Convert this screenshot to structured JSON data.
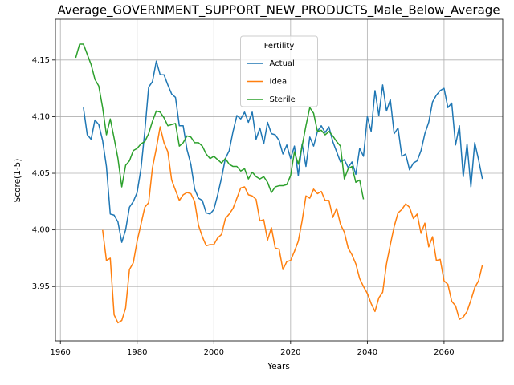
{
  "chart_data": {
    "type": "line",
    "title": "Average_GOVERNMENT_SUPPORT_NEW_PRODUCTS_Male_Below_Average",
    "xlabel": "Years",
    "ylabel": "Score(1-5)",
    "legend_title": "Fertility",
    "legend": "upper center",
    "grid": true,
    "xlim": [
      1958.7,
      2075.3
    ],
    "ylim": [
      3.902,
      4.186
    ],
    "xticks": [
      1960,
      1980,
      2000,
      2020,
      2040,
      2060
    ],
    "yticks": [
      3.95,
      {
        "value": 4.0,
        "label": "4.00"
      },
      4.05,
      {
        "value": 4.1,
        "label": "4.10"
      },
      4.15
    ],
    "x": [
      1964,
      1965,
      1966,
      1967,
      1968,
      1969,
      1970,
      1971,
      1972,
      1973,
      1974,
      1975,
      1976,
      1977,
      1978,
      1979,
      1980,
      1981,
      1982,
      1983,
      1984,
      1985,
      1986,
      1987,
      1988,
      1989,
      1990,
      1991,
      1992,
      1993,
      1994,
      1995,
      1996,
      1997,
      1998,
      1999,
      2000,
      2001,
      2002,
      2003,
      2004,
      2005,
      2006,
      2007,
      2008,
      2009,
      2010,
      2011,
      2012,
      2013,
      2014,
      2015,
      2016,
      2017,
      2018,
      2019,
      2020,
      2021,
      2022,
      2023,
      2024,
      2025,
      2026,
      2027,
      2028,
      2029,
      2030,
      2031,
      2032,
      2033,
      2034,
      2035,
      2036,
      2037,
      2038,
      2039,
      2040,
      2041,
      2042,
      2043,
      2044,
      2045,
      2046,
      2047,
      2048,
      2049,
      2050,
      2051,
      2052,
      2053,
      2054,
      2055,
      2056,
      2057,
      2058,
      2059,
      2060,
      2061,
      2062,
      2063,
      2064,
      2065,
      2066,
      2067,
      2068,
      2069,
      2070
    ],
    "series": [
      {
        "name": "Actual",
        "color": "#1f77b4",
        "values": [
          null,
          null,
          4.108,
          4.084,
          4.08,
          4.097,
          4.093,
          4.079,
          4.056,
          4.014,
          4.013,
          4.007,
          3.989,
          4.0,
          4.02,
          4.025,
          4.033,
          4.054,
          4.087,
          4.126,
          4.131,
          4.149,
          4.137,
          4.137,
          4.128,
          4.12,
          4.117,
          4.092,
          4.092,
          4.071,
          4.058,
          4.036,
          4.028,
          4.026,
          4.015,
          4.014,
          4.018,
          4.031,
          4.046,
          4.063,
          4.07,
          4.087,
          4.101,
          4.098,
          4.104,
          4.095,
          4.104,
          4.08,
          4.09,
          4.076,
          4.095,
          4.085,
          4.084,
          4.079,
          4.067,
          4.075,
          4.063,
          4.074,
          4.048,
          4.076,
          4.056,
          4.082,
          4.074,
          4.087,
          4.092,
          4.086,
          4.091,
          4.078,
          4.069,
          4.06,
          4.062,
          4.055,
          4.06,
          4.049,
          4.072,
          4.065,
          4.1,
          4.087,
          4.123,
          4.101,
          4.128,
          4.105,
          4.115,
          4.085,
          4.09,
          4.065,
          4.067,
          4.053,
          4.059,
          4.061,
          4.07,
          4.085,
          4.095,
          4.113,
          4.119,
          4.123,
          4.125,
          4.108,
          4.112,
          4.075,
          4.092,
          4.047,
          4.076,
          4.038,
          4.077,
          4.062,
          4.045
        ]
      },
      {
        "name": "Ideal",
        "color": "#ff7f0e",
        "values": [
          null,
          null,
          null,
          null,
          null,
          null,
          null,
          4.0,
          3.973,
          3.975,
          3.925,
          3.918,
          3.92,
          3.931,
          3.965,
          3.971,
          3.99,
          4.005,
          4.02,
          4.024,
          4.055,
          4.072,
          4.091,
          4.077,
          4.069,
          4.044,
          4.035,
          4.026,
          4.031,
          4.033,
          4.032,
          4.025,
          4.004,
          3.994,
          3.986,
          3.987,
          3.987,
          3.993,
          3.996,
          4.01,
          4.014,
          4.019,
          4.028,
          4.037,
          4.038,
          4.031,
          4.03,
          4.027,
          4.008,
          4.009,
          3.991,
          4.002,
          3.984,
          3.983,
          3.965,
          3.972,
          3.973,
          3.981,
          3.99,
          4.008,
          4.03,
          4.028,
          4.036,
          4.032,
          4.034,
          4.026,
          4.026,
          4.011,
          4.019,
          4.005,
          3.998,
          3.984,
          3.978,
          3.97,
          3.957,
          3.95,
          3.944,
          3.935,
          3.928,
          3.94,
          3.945,
          3.97,
          3.987,
          4.003,
          4.015,
          4.018,
          4.023,
          4.02,
          4.01,
          4.014,
          3.997,
          4.006,
          3.985,
          3.994,
          3.973,
          3.974,
          3.955,
          3.952,
          3.937,
          3.933,
          3.921,
          3.923,
          3.928,
          3.938,
          3.949,
          3.955,
          3.969
        ]
      },
      {
        "name": "Sterile",
        "color": "#2ca02c",
        "values": [
          4.152,
          4.164,
          4.164,
          4.155,
          4.146,
          4.133,
          4.127,
          4.108,
          4.084,
          4.098,
          4.081,
          4.063,
          4.038,
          4.057,
          4.061,
          4.07,
          4.072,
          4.076,
          4.078,
          4.085,
          4.096,
          4.105,
          4.104,
          4.099,
          4.092,
          4.093,
          4.094,
          4.074,
          4.077,
          4.083,
          4.082,
          4.077,
          4.077,
          4.074,
          4.067,
          4.063,
          4.065,
          4.062,
          4.059,
          4.063,
          4.058,
          4.056,
          4.056,
          4.052,
          4.054,
          4.045,
          4.051,
          4.047,
          4.045,
          4.047,
          4.042,
          4.033,
          4.038,
          4.039,
          4.039,
          4.04,
          4.048,
          4.069,
          4.058,
          4.074,
          4.092,
          4.108,
          4.103,
          4.087,
          4.088,
          4.084,
          4.087,
          4.083,
          4.078,
          4.074,
          4.045,
          4.054,
          4.056,
          4.042,
          4.044,
          4.027,
          null,
          null,
          null,
          null,
          null,
          null,
          null,
          null,
          null,
          null,
          null,
          null,
          null,
          null,
          null,
          null,
          null,
          null,
          null,
          null,
          null,
          null,
          null,
          null,
          null,
          null,
          null,
          null,
          null,
          null,
          null
        ]
      }
    ]
  }
}
